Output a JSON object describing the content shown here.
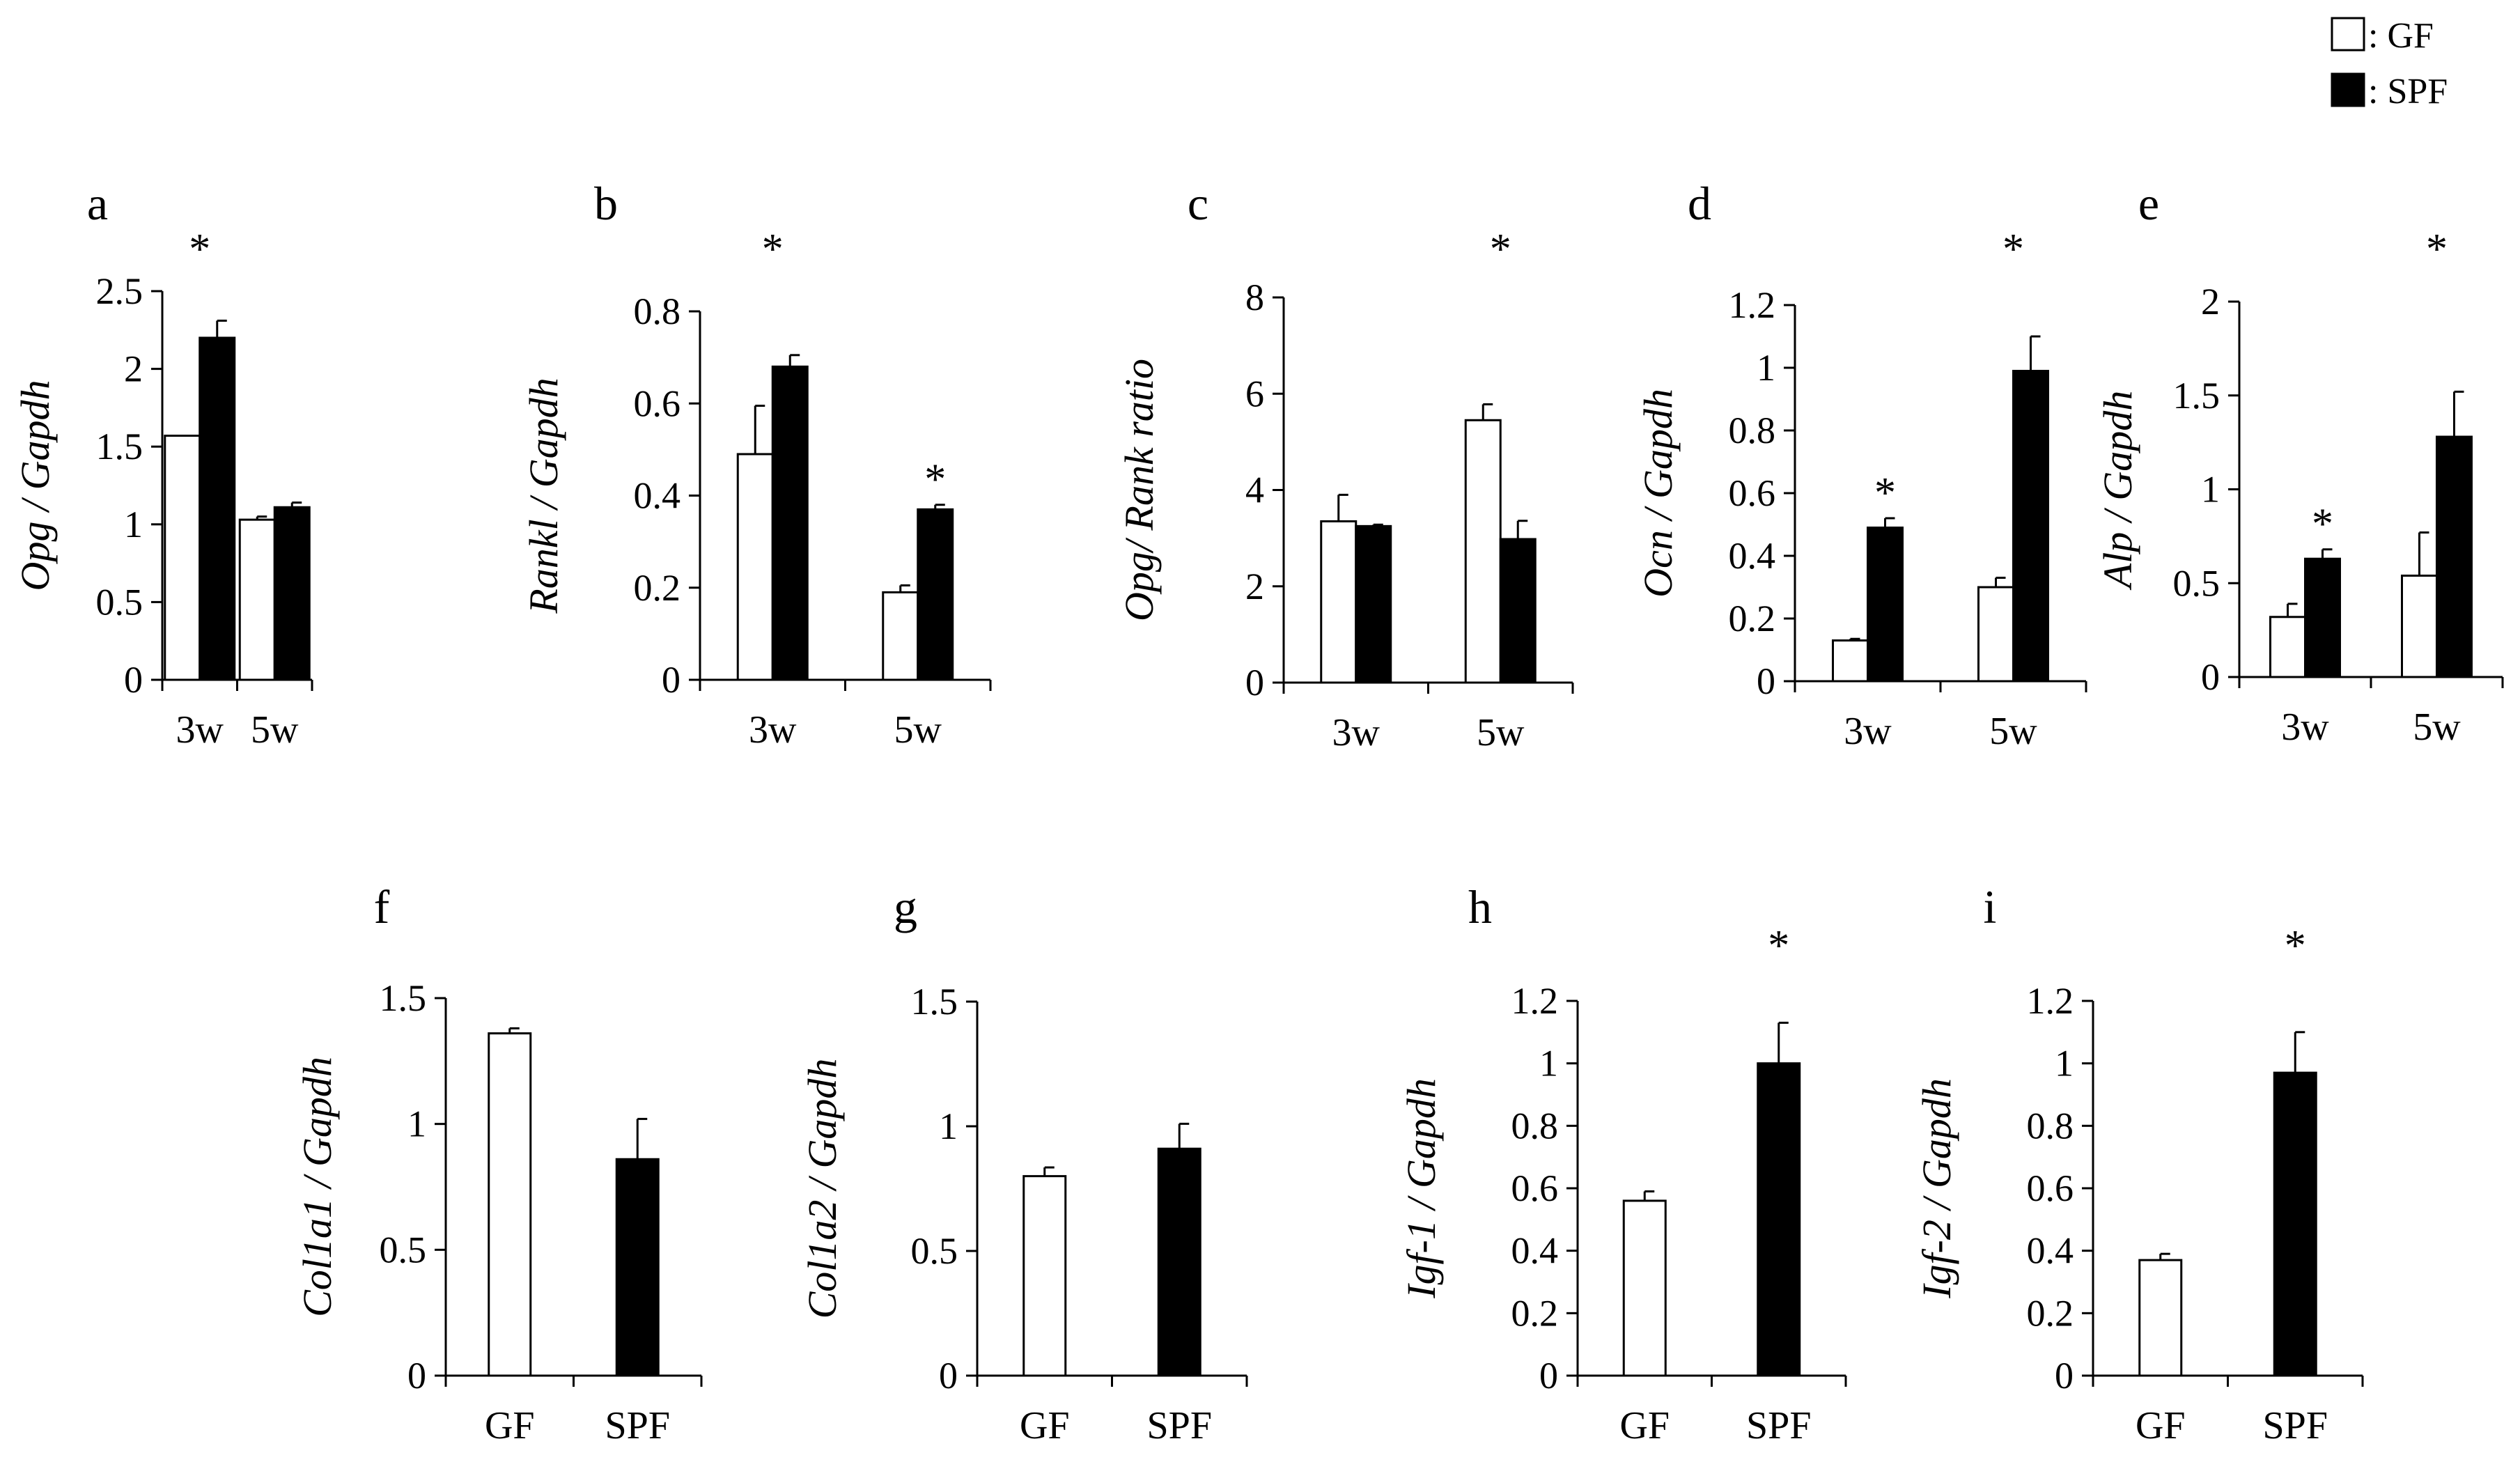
{
  "legend": {
    "items": [
      {
        "label": ": GF",
        "fill": "#ffffff",
        "key": "GF"
      },
      {
        "label": ": SPF",
        "fill": "#000000",
        "key": "SPF"
      }
    ]
  },
  "colors": {
    "GF": "#ffffff",
    "SPF": "#000000",
    "stroke": "#000000"
  },
  "chart_data": [
    {
      "id": "a",
      "letter": "a",
      "type": "bar",
      "ylabel_gene": "Opg",
      "ylabel_rest": " / Gapdh",
      "ylim": [
        0,
        2.5
      ],
      "yticks": [
        "0",
        "0.5",
        "1",
        "1.5",
        "2",
        "2.5"
      ],
      "ytick_values": [
        0,
        0.5,
        1,
        1.5,
        2,
        2.5
      ],
      "categories": [
        "3w",
        "5w"
      ],
      "series": [
        {
          "name": "GF",
          "values": [
            1.57,
            1.03
          ],
          "errors": [
            0,
            0.02
          ]
        },
        {
          "name": "SPF",
          "values": [
            2.2,
            1.11
          ],
          "errors": [
            0.11,
            0.03
          ]
        }
      ],
      "annotations": [
        {
          "text": "*",
          "category": 0,
          "series": null,
          "position": "top"
        }
      ]
    },
    {
      "id": "b",
      "letter": "b",
      "type": "bar",
      "ylabel_gene": "Rankl",
      "ylabel_rest": " / Gapdh",
      "ylim": [
        0,
        0.8
      ],
      "yticks": [
        "0",
        "0.2",
        "0.4",
        "0.6",
        "0.8"
      ],
      "ytick_values": [
        0,
        0.2,
        0.4,
        0.6,
        0.8
      ],
      "categories": [
        "3w",
        "5w"
      ],
      "series": [
        {
          "name": "GF",
          "values": [
            0.49,
            0.19
          ],
          "errors": [
            0.105,
            0.015
          ]
        },
        {
          "name": "SPF",
          "values": [
            0.68,
            0.37
          ],
          "errors": [
            0.025,
            0.01
          ]
        }
      ],
      "annotations": [
        {
          "text": "*",
          "category": 0,
          "series": null,
          "position": "top"
        },
        {
          "text": "*",
          "category": 1,
          "series": 1,
          "position": "above-bar"
        }
      ]
    },
    {
      "id": "c",
      "letter": "c",
      "type": "bar",
      "ylabel_gene": "Opg",
      "ylabel_rest": "/ Rank ratio",
      "ylim": [
        0,
        8
      ],
      "yticks": [
        "0",
        "2",
        "4",
        "6",
        "8"
      ],
      "ytick_values": [
        0,
        2,
        4,
        6,
        8
      ],
      "categories": [
        "3w",
        "5w"
      ],
      "series": [
        {
          "name": "GF",
          "values": [
            3.35,
            5.45
          ],
          "errors": [
            0.55,
            0.33
          ]
        },
        {
          "name": "SPF",
          "values": [
            3.25,
            2.98
          ],
          "errors": [
            0.03,
            0.38
          ]
        }
      ],
      "annotations": [
        {
          "text": "*",
          "category": 1,
          "series": null,
          "position": "top"
        }
      ]
    },
    {
      "id": "d",
      "letter": "d",
      "type": "bar",
      "ylabel_gene": "Ocn",
      "ylabel_rest": " / Gapdh",
      "ylim": [
        0,
        1.2
      ],
      "yticks": [
        "0",
        "0.2",
        "0.4",
        "0.6",
        "0.8",
        "1",
        "1.2"
      ],
      "ytick_values": [
        0,
        0.2,
        0.4,
        0.6,
        0.8,
        1,
        1.2
      ],
      "categories": [
        "3w",
        "5w"
      ],
      "series": [
        {
          "name": "GF",
          "values": [
            0.13,
            0.3
          ],
          "errors": [
            0.005,
            0.03
          ]
        },
        {
          "name": "SPF",
          "values": [
            0.49,
            0.99
          ],
          "errors": [
            0.03,
            0.11
          ]
        }
      ],
      "annotations": [
        {
          "text": "*",
          "category": 0,
          "series": 1,
          "position": "above-bar"
        },
        {
          "text": "*",
          "category": 1,
          "series": null,
          "position": "top"
        }
      ]
    },
    {
      "id": "e",
      "letter": "e",
      "type": "bar",
      "ylabel_gene": "Alp",
      "ylabel_rest": " / Gapdh",
      "ylim": [
        0,
        2
      ],
      "yticks": [
        "0",
        "0.5",
        "1",
        "1.5",
        "2"
      ],
      "ytick_values": [
        0,
        0.5,
        1,
        1.5,
        2
      ],
      "categories": [
        "3w",
        "5w"
      ],
      "series": [
        {
          "name": "GF",
          "values": [
            0.32,
            0.54
          ],
          "errors": [
            0.07,
            0.23
          ]
        },
        {
          "name": "SPF",
          "values": [
            0.63,
            1.28
          ],
          "errors": [
            0.05,
            0.24
          ]
        }
      ],
      "annotations": [
        {
          "text": "*",
          "category": 0,
          "series": 1,
          "position": "above-bar"
        },
        {
          "text": "*",
          "category": 1,
          "series": null,
          "position": "top"
        }
      ]
    },
    {
      "id": "f",
      "letter": "f",
      "type": "bar",
      "ylabel_gene": "Col1a1",
      "ylabel_rest": " / Gapdh",
      "ylim": [
        0,
        1.5
      ],
      "yticks": [
        "0",
        "0.5",
        "1",
        "1.5"
      ],
      "ytick_values": [
        0,
        0.5,
        1,
        1.5
      ],
      "categories": [
        "GF",
        "SPF"
      ],
      "values": [
        1.36,
        0.86
      ],
      "errors": [
        0.02,
        0.16
      ],
      "annotations": []
    },
    {
      "id": "g",
      "letter": "g",
      "type": "bar",
      "ylabel_gene": "Col1a2",
      "ylabel_rest": " / Gapdh",
      "ylim": [
        0,
        1.5
      ],
      "yticks": [
        "0",
        "0.5",
        "1",
        "1.5"
      ],
      "ytick_values": [
        0,
        0.5,
        1,
        1.5
      ],
      "categories": [
        "GF",
        "SPF"
      ],
      "values": [
        0.8,
        0.91
      ],
      "errors": [
        0.035,
        0.1
      ],
      "annotations": []
    },
    {
      "id": "h",
      "letter": "h",
      "type": "bar",
      "ylabel_gene": "Igf-1",
      "ylabel_rest": " / Gapdh",
      "ylim": [
        0,
        1.2
      ],
      "yticks": [
        "0",
        "0.2",
        "0.4",
        "0.6",
        "0.8",
        "1",
        "1.2"
      ],
      "ytick_values": [
        0,
        0.2,
        0.4,
        0.6,
        0.8,
        1,
        1.2
      ],
      "categories": [
        "GF",
        "SPF"
      ],
      "values": [
        0.56,
        1.0
      ],
      "errors": [
        0.03,
        0.13
      ],
      "annotations": [
        {
          "text": "*",
          "category": 1,
          "series": null,
          "position": "top"
        }
      ]
    },
    {
      "id": "i",
      "letter": "i",
      "type": "bar",
      "ylabel_gene": "Igf-2",
      "ylabel_rest": " / Gapdh",
      "ylim": [
        0,
        1.2
      ],
      "yticks": [
        "0",
        "0.2",
        "0.4",
        "0.6",
        "0.8",
        "1",
        "1.2"
      ],
      "ytick_values": [
        0,
        0.2,
        0.4,
        0.6,
        0.8,
        1,
        1.2
      ],
      "categories": [
        "GF",
        "SPF"
      ],
      "values": [
        0.37,
        0.97
      ],
      "errors": [
        0.02,
        0.13
      ],
      "annotations": [
        {
          "text": "*",
          "category": 1,
          "series": null,
          "position": "top"
        }
      ]
    }
  ]
}
